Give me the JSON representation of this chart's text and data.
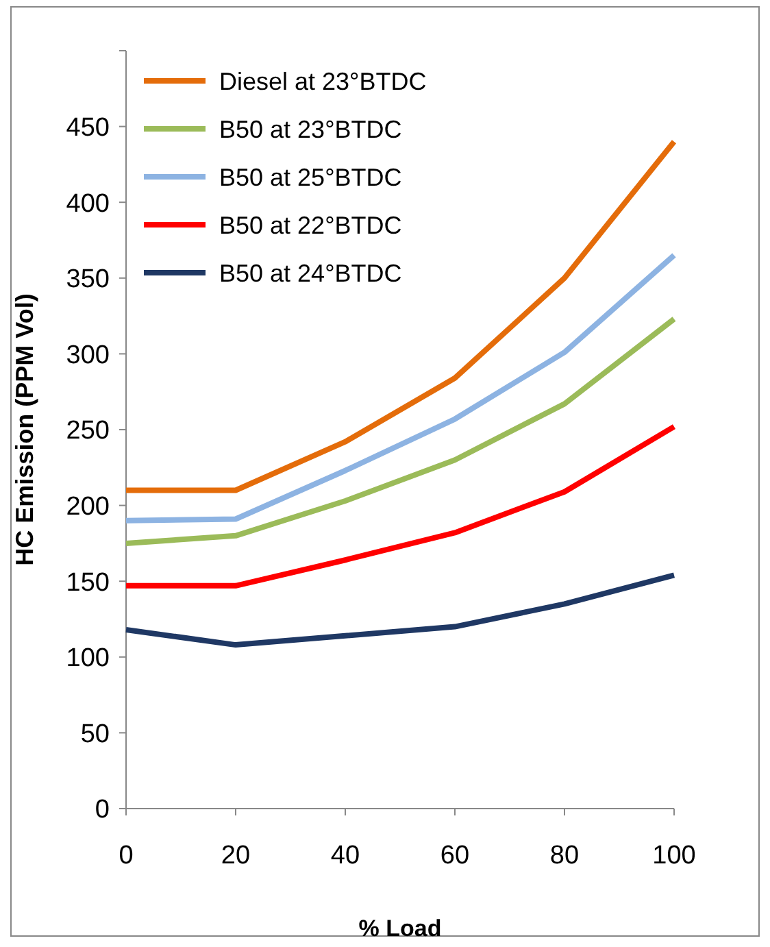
{
  "chart_data": {
    "type": "line",
    "xlabel": "% Load",
    "ylabel": "HC Emission (PPM Vol)",
    "x": [
      0,
      20,
      40,
      60,
      80,
      100
    ],
    "xlim": [
      0,
      100
    ],
    "xticks": [
      0,
      20,
      40,
      60,
      80,
      100
    ],
    "ylim": [
      0,
      500
    ],
    "yticks": [
      0,
      50,
      100,
      150,
      200,
      250,
      300,
      350,
      400,
      450,
      {
        "value": 500,
        "label": null
      }
    ],
    "legend": "top left",
    "grid": false,
    "series": [
      {
        "name": "Diesel at 23°BTDC",
        "color": "#e46c0a",
        "values": [
          210,
          210,
          242,
          284,
          350,
          440
        ]
      },
      {
        "name": "B50 at 23°BTDC",
        "color": "#9bbb59",
        "values": [
          175,
          180,
          203,
          230,
          267,
          323
        ]
      },
      {
        "name": "B50 at 25°BTDC",
        "color": "#8db3e2",
        "values": [
          190,
          191,
          223,
          257,
          301,
          365
        ]
      },
      {
        "name": "B50 at 22°BTDC",
        "color": "#ff0000",
        "values": [
          147,
          147,
          164,
          182,
          209,
          252
        ]
      },
      {
        "name": "B50 at 24°BTDC",
        "color": "#1f3864",
        "values": [
          118,
          108,
          114,
          120,
          135,
          154
        ]
      }
    ]
  }
}
